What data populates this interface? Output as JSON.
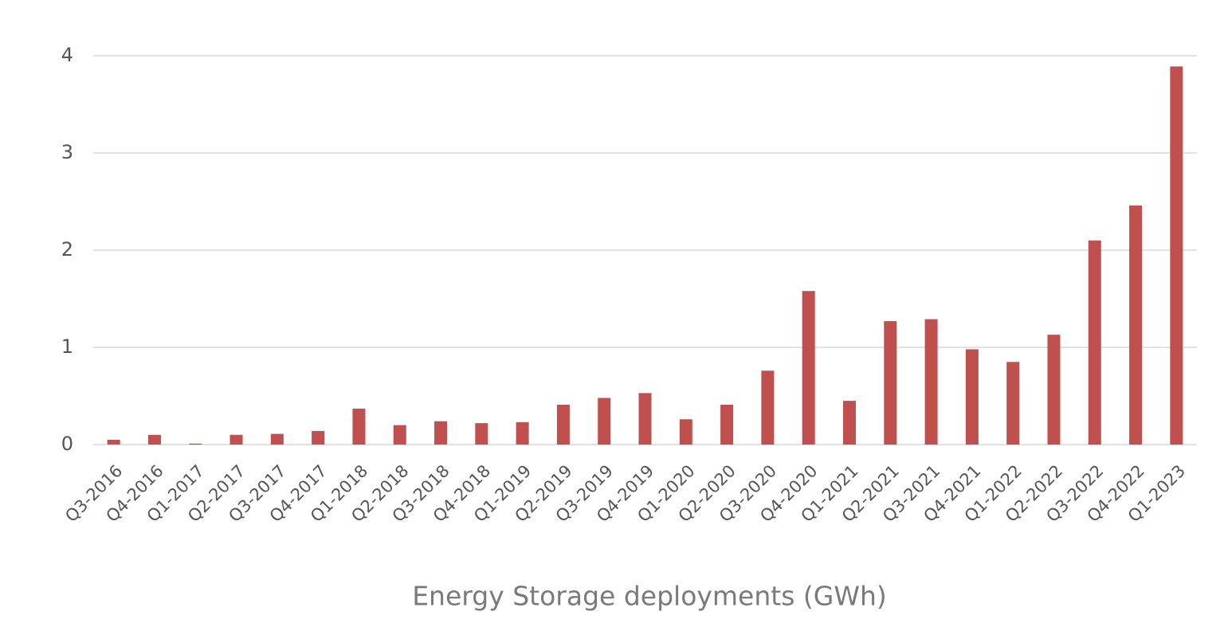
{
  "chart_data": {
    "type": "bar",
    "title": "Energy Storage deployments (GWh)",
    "categories": [
      "Q3-2016",
      "Q4-2016",
      "Q1-2017",
      "Q2-2017",
      "Q3-2017",
      "Q4-2017",
      "Q1-2018",
      "Q2-2018",
      "Q3-2018",
      "Q4-2018",
      "Q1-2019",
      "Q2-2019",
      "Q3-2019",
      "Q4-2019",
      "Q1-2020",
      "Q2-2020",
      "Q3-2020",
      "Q4-2020",
      "Q1-2021",
      "Q2-2021",
      "Q3-2021",
      "Q4-2021",
      "Q1-2022",
      "Q2-2022",
      "Q3-2022",
      "Q4-2022",
      "Q1-2023"
    ],
    "values": [
      0.05,
      0.1,
      0.01,
      0.1,
      0.11,
      0.14,
      0.37,
      0.2,
      0.24,
      0.22,
      0.23,
      0.41,
      0.48,
      0.53,
      0.26,
      0.41,
      0.76,
      1.58,
      0.45,
      1.27,
      1.29,
      0.98,
      0.85,
      1.13,
      2.1,
      2.46,
      3.89
    ],
    "color": "#c0504d",
    "ylim": [
      0,
      4
    ],
    "yticks": [
      0,
      1,
      2,
      3,
      4
    ],
    "grid": true
  }
}
